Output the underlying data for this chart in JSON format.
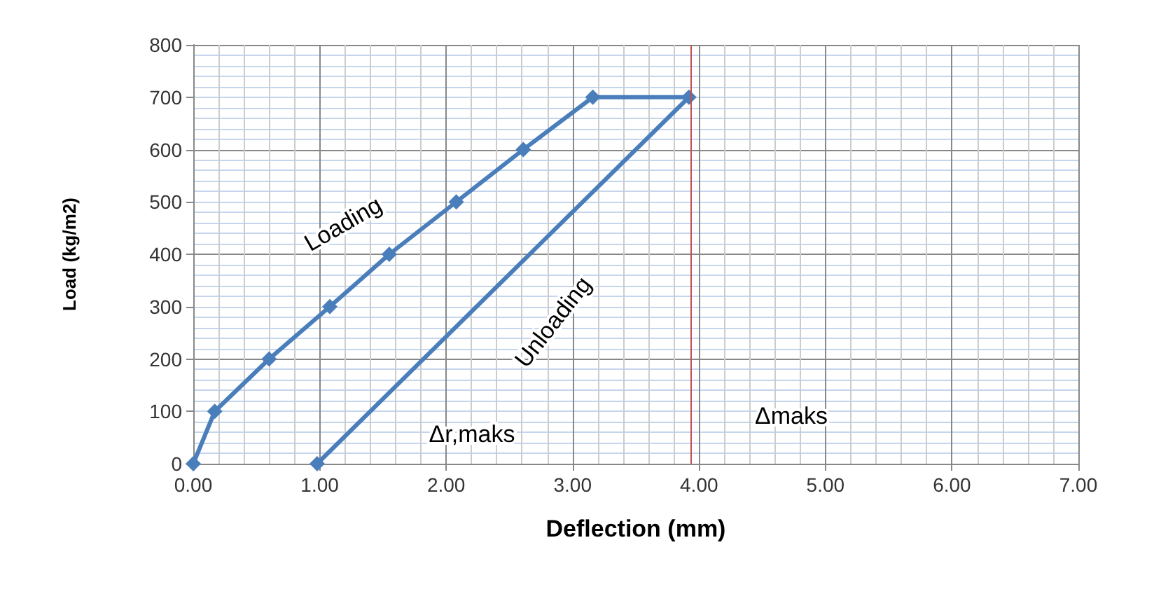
{
  "chart_data": {
    "type": "line",
    "xlabel": "Deflection (mm)",
    "ylabel": "Load (kg/m2)",
    "x": [
      0,
      0.17,
      0.6,
      1.08,
      1.55,
      2.08,
      2.61,
      3.16,
      3.92,
      0.98
    ],
    "series": [
      {
        "color": "#4a7ebb",
        "values": [
          0,
          100,
          200,
          300,
          400,
          500,
          600,
          700,
          700,
          0
        ]
      }
    ],
    "xlim": [
      0,
      7
    ],
    "xticks": [
      {
        "value": 0,
        "label": "0.00"
      },
      {
        "value": 1,
        "label": "1.00"
      },
      {
        "value": 2,
        "label": "2.00"
      },
      {
        "value": 3,
        "label": "3.00"
      },
      {
        "value": 4,
        "label": "4.00"
      },
      {
        "value": 5,
        "label": "5.00"
      },
      {
        "value": 6,
        "label": "6.00"
      },
      {
        "value": 7,
        "label": "7.00"
      }
    ],
    "ylim": [
      0,
      800
    ],
    "yticks": [
      0,
      100,
      200,
      300,
      400,
      500,
      600,
      700,
      800
    ],
    "ref_lines": [
      {
        "axis": "x",
        "value": 3.94,
        "color": "#c0504d"
      }
    ],
    "annotations": [
      "Loading",
      "Unloading",
      "Δr,maks",
      "Δmaks"
    ],
    "grid": true,
    "marker": "diamond",
    "line_style": "solid"
  }
}
